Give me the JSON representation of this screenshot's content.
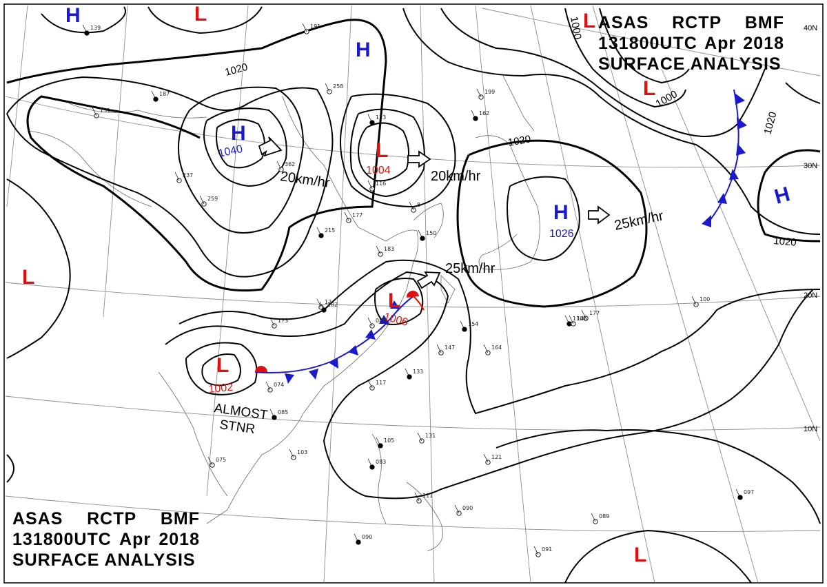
{
  "header": {
    "line1": [
      "ASAS",
      "RCTP",
      "BMF"
    ],
    "line2": [
      "131800UTC",
      "Apr",
      "2018"
    ],
    "line3": "SURFACE ANALYSIS"
  },
  "latitude_labels": [
    "40N",
    "30N",
    "20N",
    "10N"
  ],
  "pressure_centers": [
    {
      "type": "H",
      "value": "1040",
      "color": "#1a1acc"
    },
    {
      "type": "L",
      "value": "1004",
      "color": "#e01010"
    },
    {
      "type": "H",
      "value": "1026",
      "color": "#1a1acc"
    },
    {
      "type": "L",
      "value": "1006",
      "color": "#e01010"
    },
    {
      "type": "L",
      "value": "1002",
      "color": "#e01010"
    }
  ],
  "unlabeled_centers": [
    {
      "type": "H",
      "color": "#1a1acc"
    },
    {
      "type": "L",
      "color": "#e01010"
    },
    {
      "type": "H",
      "color": "#1a1acc"
    },
    {
      "type": "L",
      "color": "#e01010"
    },
    {
      "type": "L",
      "color": "#e01010"
    },
    {
      "type": "H",
      "color": "#1a1acc"
    },
    {
      "type": "L",
      "color": "#e01010"
    }
  ],
  "isobar_labels": [
    "1020",
    "1020",
    "1000",
    "1000",
    "1020",
    "1020"
  ],
  "motion_vectors": [
    "20km/hr",
    "20km/hr",
    "25km/hr",
    "25km/hr"
  ],
  "notes": [
    "ALMOST",
    "STNR"
  ],
  "station_reports": [
    "139",
    "191",
    "258",
    "187",
    "131",
    "362",
    "123",
    "116",
    "8",
    "162",
    "199",
    "177",
    "150",
    "183",
    "12",
    "182",
    "173",
    "083",
    "154",
    "147",
    "164",
    "133",
    "117",
    "074",
    "085",
    "075",
    "103",
    "105",
    "131",
    "121",
    "083",
    "111",
    "090",
    "097",
    "089",
    "091",
    "090",
    "100",
    "177",
    "110",
    "146",
    "237",
    "215",
    "259"
  ],
  "colors": {
    "high": "#1a1acc",
    "low": "#e01010",
    "cold_front": "#1a1acc",
    "warm_front": "#e01010",
    "isobar": "#000000",
    "grid": "#808080"
  }
}
